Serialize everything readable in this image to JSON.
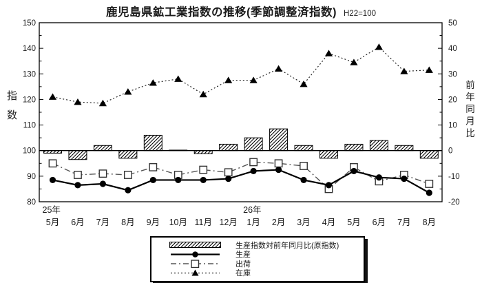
{
  "chart_data": {
    "type": "combo",
    "title": "鹿児島県鉱工業指数の推移(季節調整済指数)",
    "subtitle": "H22=100",
    "categories": [
      "5月",
      "6月",
      "7月",
      "8月",
      "9月",
      "10月",
      "11月",
      "12月",
      "1月",
      "2月",
      "3月",
      "4月",
      "5月",
      "6月",
      "7月",
      "8月"
    ],
    "year_labels": [
      {
        "index": 0,
        "label": "25年"
      },
      {
        "index": 8,
        "label": "26年"
      }
    ],
    "left_axis": {
      "title": "指数",
      "min": 80,
      "max": 150,
      "tick_step": 10,
      "minor_step": 5,
      "ticks": [
        80,
        90,
        100,
        110,
        120,
        130,
        140,
        150
      ]
    },
    "right_axis": {
      "title": "前年同月比",
      "min": -20,
      "max": 50,
      "tick_step": 10,
      "minor_step": 5,
      "ticks": [
        -20,
        -10,
        0,
        10,
        20,
        30,
        40,
        50
      ]
    },
    "baseline": {
      "left_value": 100,
      "right_value": 0
    },
    "series": [
      {
        "name": "生産指数対前年同月比(原指数)",
        "type": "bar",
        "axis": "right",
        "style": "diagonal-hatch",
        "values": [
          -1,
          -3.5,
          2,
          -3,
          6,
          0.2,
          -1.2,
          2.5,
          5,
          8.5,
          2,
          -3,
          2.5,
          4,
          2,
          -3
        ]
      },
      {
        "name": "生産",
        "type": "line",
        "axis": "left",
        "line_style": "solid",
        "marker": "filled-circle",
        "values": [
          88.5,
          86.5,
          87,
          84.5,
          88.5,
          88.5,
          88.5,
          89,
          92,
          92.5,
          88.5,
          86.5,
          92,
          89.5,
          89,
          83.5
        ]
      },
      {
        "name": "出荷",
        "type": "line",
        "axis": "left",
        "line_style": "dashdot",
        "marker": "open-square",
        "values": [
          95,
          90.5,
          91,
          90.5,
          93.5,
          90.5,
          92.5,
          91.5,
          95.5,
          95,
          94,
          85,
          93.5,
          88,
          90.5,
          87
        ]
      },
      {
        "name": "在庫",
        "type": "line",
        "axis": "left",
        "line_style": "dotted",
        "marker": "filled-triangle",
        "values": [
          121,
          119,
          118.5,
          123,
          126.5,
          128,
          122,
          127.5,
          127.5,
          132,
          126,
          138,
          134.5,
          140.5,
          131,
          131.5
        ]
      }
    ],
    "colors": {
      "foreground": "#000000",
      "background": "#ffffff",
      "dash_line": "#555555"
    },
    "legend_position": "bottom",
    "grid": false
  }
}
